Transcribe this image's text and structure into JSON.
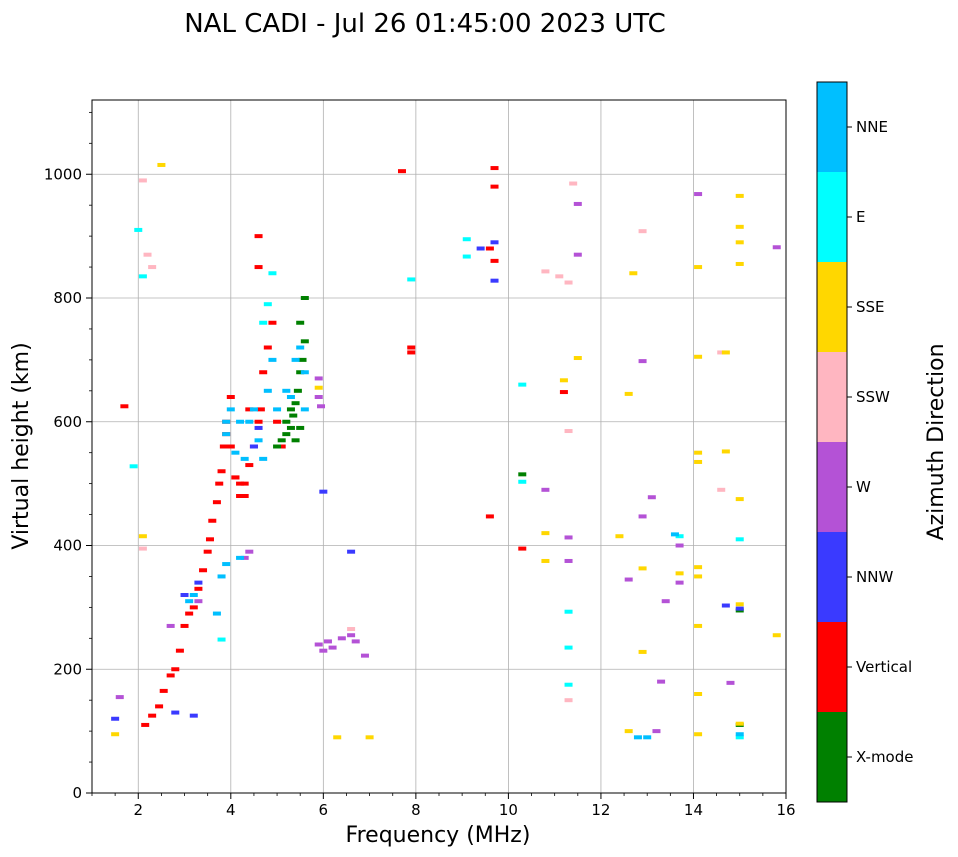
{
  "chart_data": {
    "type": "scatter",
    "title": "NAL CADI - Jul 26 01:45:00 2023 UTC",
    "xlabel": "Frequency (MHz)",
    "ylabel": "Virtual height (km)",
    "xlim": [
      1,
      16
    ],
    "ylim": [
      0,
      1120
    ],
    "xticks": [
      2,
      4,
      6,
      8,
      10,
      12,
      14,
      16
    ],
    "yticks": [
      0,
      200,
      400,
      600,
      800,
      1000
    ],
    "grid": true,
    "colorbar": {
      "label": "Azimuth Direction",
      "entries": [
        {
          "name": "X-mode",
          "color": "#008000"
        },
        {
          "name": "Vertical",
          "color": "#ff0000"
        },
        {
          "name": "NNW",
          "color": "#3a3aff"
        },
        {
          "name": "W",
          "color": "#b452d6"
        },
        {
          "name": "SSW",
          "color": "#ffb6c1"
        },
        {
          "name": "SSE",
          "color": "#ffd700"
        },
        {
          "name": "E",
          "color": "#00ffff"
        },
        {
          "name": "NNE",
          "color": "#00bfff"
        }
      ]
    },
    "series": [
      {
        "name": "Vertical",
        "points": [
          [
            1.7,
            625
          ],
          [
            2.15,
            110
          ],
          [
            2.3,
            125
          ],
          [
            2.45,
            140
          ],
          [
            2.55,
            165
          ],
          [
            2.7,
            190
          ],
          [
            2.8,
            200
          ],
          [
            2.9,
            230
          ],
          [
            3.0,
            270
          ],
          [
            3.1,
            290
          ],
          [
            3.2,
            300
          ],
          [
            3.3,
            330
          ],
          [
            3.4,
            360
          ],
          [
            3.5,
            390
          ],
          [
            3.55,
            410
          ],
          [
            3.6,
            440
          ],
          [
            3.7,
            470
          ],
          [
            3.75,
            500
          ],
          [
            3.8,
            520
          ],
          [
            3.85,
            560
          ],
          [
            3.9,
            600
          ],
          [
            4.0,
            640
          ],
          [
            4.1,
            510
          ],
          [
            4.2,
            480
          ],
          [
            4.3,
            500
          ],
          [
            4.4,
            530
          ],
          [
            4.5,
            560
          ],
          [
            4.6,
            600
          ],
          [
            4.65,
            620
          ],
          [
            4.7,
            680
          ],
          [
            4.8,
            720
          ],
          [
            4.9,
            760
          ],
          [
            4.6,
            900
          ],
          [
            4.6,
            850
          ],
          [
            5.0,
            600
          ],
          [
            5.1,
            560
          ],
          [
            7.7,
            1005
          ],
          [
            7.9,
            720
          ],
          [
            7.9,
            712
          ],
          [
            9.7,
            1010
          ],
          [
            9.7,
            980
          ],
          [
            9.6,
            880
          ],
          [
            9.7,
            860
          ],
          [
            9.6,
            447
          ],
          [
            10.3,
            395
          ],
          [
            11.2,
            648
          ],
          [
            4.1,
            510
          ],
          [
            4.2,
            500
          ],
          [
            4.3,
            480
          ],
          [
            3.9,
            580
          ],
          [
            4.0,
            560
          ],
          [
            4.4,
            620
          ]
        ]
      },
      {
        "name": "X-mode",
        "points": [
          [
            5.0,
            560
          ],
          [
            5.1,
            570
          ],
          [
            5.2,
            580
          ],
          [
            5.3,
            590
          ],
          [
            5.35,
            610
          ],
          [
            5.4,
            630
          ],
          [
            5.45,
            650
          ],
          [
            5.5,
            680
          ],
          [
            5.55,
            700
          ],
          [
            5.6,
            730
          ],
          [
            5.5,
            760
          ],
          [
            5.6,
            800
          ],
          [
            5.3,
            620
          ],
          [
            5.2,
            600
          ],
          [
            5.4,
            570
          ],
          [
            5.5,
            590
          ],
          [
            10.3,
            515
          ],
          [
            15.0,
            295
          ],
          [
            15.0,
            110
          ]
        ]
      },
      {
        "name": "NNW",
        "points": [
          [
            1.5,
            120
          ],
          [
            2.8,
            130
          ],
          [
            3.2,
            125
          ],
          [
            3.0,
            320
          ],
          [
            3.3,
            340
          ],
          [
            4.5,
            560
          ],
          [
            4.6,
            590
          ],
          [
            6.0,
            487
          ],
          [
            6.6,
            390
          ],
          [
            9.7,
            828
          ],
          [
            9.7,
            890
          ],
          [
            9.4,
            880
          ],
          [
            14.7,
            303
          ],
          [
            15.0,
            298
          ]
        ]
      },
      {
        "name": "W",
        "points": [
          [
            1.6,
            155
          ],
          [
            2.7,
            270
          ],
          [
            3.3,
            310
          ],
          [
            4.3,
            380
          ],
          [
            4.4,
            390
          ],
          [
            5.9,
            240
          ],
          [
            6.0,
            230
          ],
          [
            6.1,
            245
          ],
          [
            6.2,
            235
          ],
          [
            6.4,
            250
          ],
          [
            6.6,
            255
          ],
          [
            6.7,
            245
          ],
          [
            6.9,
            222
          ],
          [
            5.95,
            625
          ],
          [
            5.9,
            670
          ],
          [
            5.9,
            640
          ],
          [
            10.8,
            490
          ],
          [
            11.3,
            375
          ],
          [
            11.3,
            413
          ],
          [
            11.5,
            870
          ],
          [
            11.5,
            952
          ],
          [
            12.6,
            345
          ],
          [
            12.9,
            447
          ],
          [
            12.9,
            698
          ],
          [
            13.1,
            478
          ],
          [
            13.2,
            100
          ],
          [
            13.3,
            180
          ],
          [
            13.4,
            310
          ],
          [
            13.7,
            340
          ],
          [
            13.7,
            400
          ],
          [
            14.1,
            968
          ],
          [
            14.8,
            178
          ],
          [
            15.8,
            882
          ]
        ]
      },
      {
        "name": "SSW",
        "points": [
          [
            2.1,
            395
          ],
          [
            2.1,
            990
          ],
          [
            2.2,
            870
          ],
          [
            2.3,
            850
          ],
          [
            6.6,
            265
          ],
          [
            10.8,
            843
          ],
          [
            11.1,
            835
          ],
          [
            11.3,
            585
          ],
          [
            11.3,
            150
          ],
          [
            11.3,
            825
          ],
          [
            11.4,
            985
          ],
          [
            12.9,
            908
          ],
          [
            14.6,
            490
          ],
          [
            14.6,
            712
          ]
        ]
      },
      {
        "name": "SSE",
        "points": [
          [
            1.5,
            95
          ],
          [
            2.1,
            415
          ],
          [
            2.5,
            1015
          ],
          [
            5.9,
            655
          ],
          [
            6.3,
            90
          ],
          [
            7.0,
            90
          ],
          [
            10.8,
            420
          ],
          [
            10.8,
            375
          ],
          [
            11.2,
            667
          ],
          [
            11.5,
            703
          ],
          [
            12.4,
            415
          ],
          [
            12.6,
            645
          ],
          [
            12.7,
            840
          ],
          [
            12.6,
            100
          ],
          [
            12.9,
            363
          ],
          [
            12.9,
            228
          ],
          [
            13.7,
            355
          ],
          [
            14.1,
            550
          ],
          [
            14.1,
            535
          ],
          [
            14.1,
            850
          ],
          [
            14.1,
            705
          ],
          [
            14.1,
            365
          ],
          [
            14.1,
            350
          ],
          [
            14.1,
            270
          ],
          [
            14.1,
            160
          ],
          [
            14.1,
            95
          ],
          [
            14.7,
            552
          ],
          [
            14.7,
            712
          ],
          [
            15.0,
            965
          ],
          [
            15.0,
            915
          ],
          [
            15.0,
            890
          ],
          [
            15.0,
            855
          ],
          [
            15.0,
            475
          ],
          [
            15.0,
            305
          ],
          [
            15.0,
            112
          ],
          [
            15.8,
            255
          ]
        ]
      },
      {
        "name": "E",
        "points": [
          [
            1.9,
            528
          ],
          [
            2.0,
            910
          ],
          [
            2.1,
            835
          ],
          [
            3.8,
            248
          ],
          [
            4.7,
            760
          ],
          [
            4.8,
            790
          ],
          [
            4.9,
            840
          ],
          [
            7.9,
            830
          ],
          [
            9.1,
            895
          ],
          [
            9.1,
            867
          ],
          [
            10.3,
            660
          ],
          [
            10.3,
            503
          ],
          [
            11.3,
            293
          ],
          [
            11.3,
            175
          ],
          [
            11.3,
            235
          ],
          [
            13.7,
            415
          ],
          [
            15.0,
            410
          ],
          [
            15.0,
            90
          ]
        ]
      },
      {
        "name": "NNE",
        "points": [
          [
            3.9,
            600
          ],
          [
            3.9,
            580
          ],
          [
            4.0,
            620
          ],
          [
            4.1,
            550
          ],
          [
            4.2,
            600
          ],
          [
            4.3,
            540
          ],
          [
            4.4,
            600
          ],
          [
            4.5,
            620
          ],
          [
            4.6,
            570
          ],
          [
            4.7,
            540
          ],
          [
            4.8,
            650
          ],
          [
            4.9,
            700
          ],
          [
            5.0,
            620
          ],
          [
            5.2,
            650
          ],
          [
            5.3,
            640
          ],
          [
            5.4,
            700
          ],
          [
            5.5,
            720
          ],
          [
            5.6,
            620
          ],
          [
            5.6,
            680
          ],
          [
            3.7,
            290
          ],
          [
            3.8,
            350
          ],
          [
            3.9,
            370
          ],
          [
            3.1,
            310
          ],
          [
            3.2,
            320
          ],
          [
            4.2,
            380
          ],
          [
            13.0,
            90
          ],
          [
            12.8,
            90
          ],
          [
            15.0,
            95
          ],
          [
            13.6,
            418
          ]
        ]
      }
    ]
  }
}
